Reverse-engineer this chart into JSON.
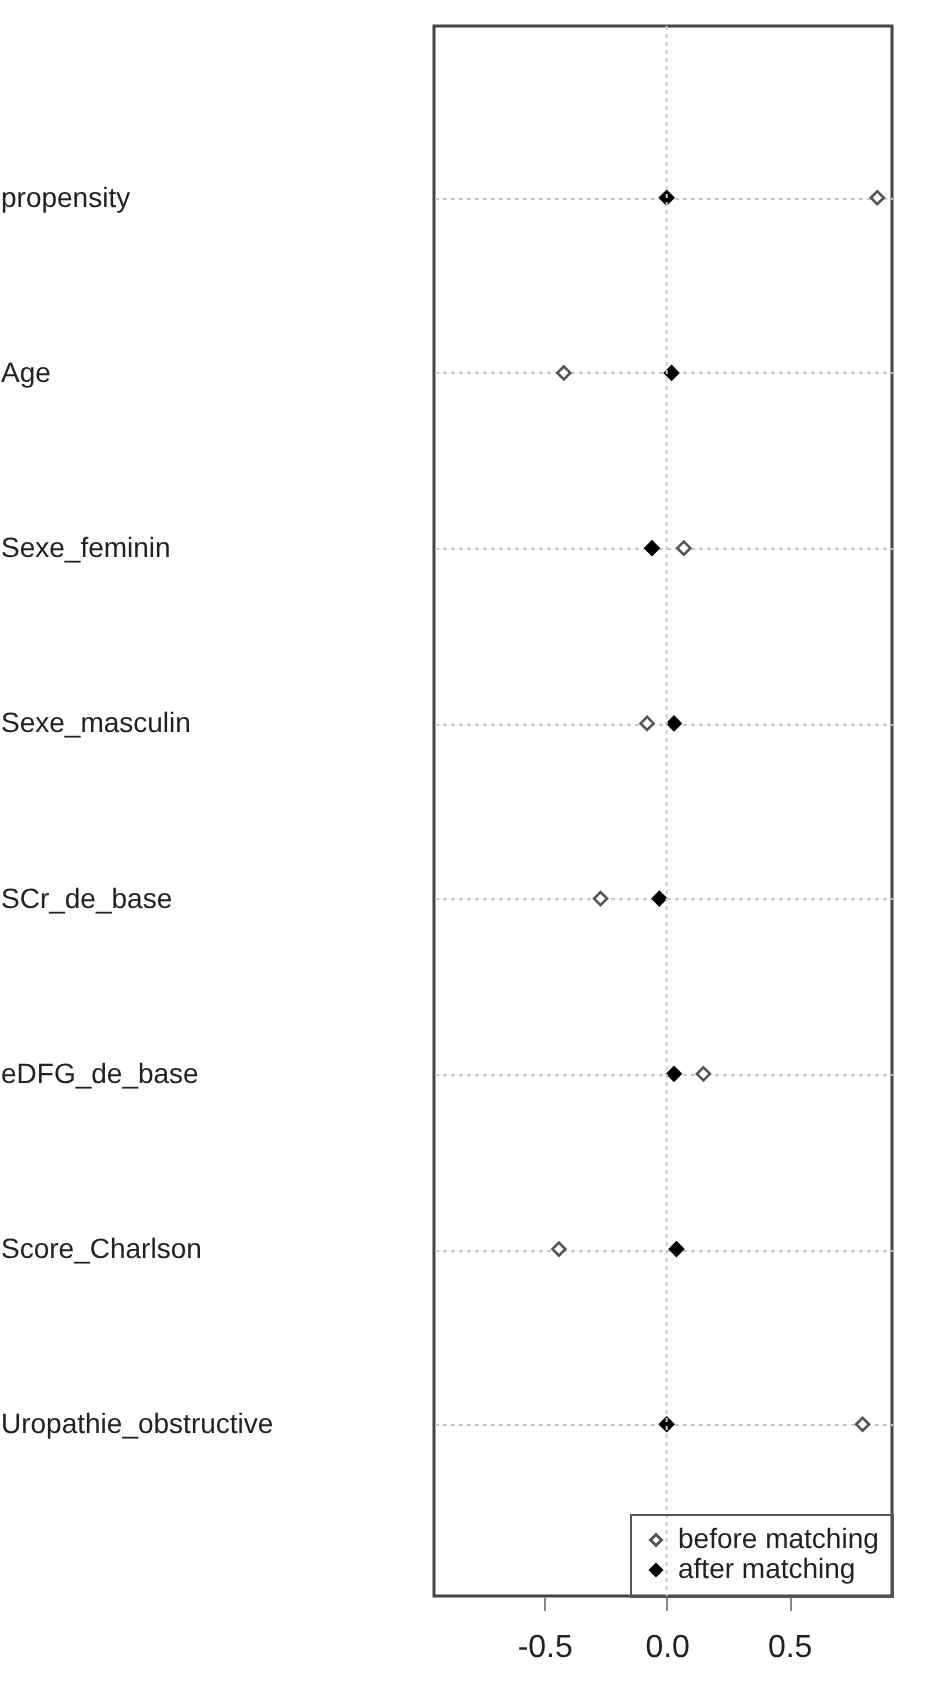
{
  "chart_data": {
    "type": "scatter",
    "categories": [
      "propensity",
      "Age",
      "Sexe_feminin",
      "Sexe_masculin",
      "SCr_de_base",
      "eDFG_de_base",
      "Score_Charlson",
      "Uropathie_obstructive"
    ],
    "series": [
      {
        "name": "before matching",
        "color": "#555555",
        "values": [
          0.86,
          -0.42,
          0.07,
          -0.08,
          -0.27,
          0.15,
          -0.44,
          0.8
        ]
      },
      {
        "name": "after matching",
        "color": "#000000",
        "values": [
          0.0,
          0.02,
          -0.06,
          0.03,
          -0.03,
          0.03,
          0.04,
          0.0
        ]
      }
    ],
    "xlim": [
      -0.95,
      0.92
    ],
    "xticks": [
      {
        "value": -0.5,
        "label": "-0.5"
      },
      {
        "value": 0,
        "label": "0.0"
      },
      {
        "value": 0.5,
        "label": "0.5"
      }
    ],
    "ref_lines": [
      {
        "axis": "x",
        "value": 0,
        "color": "#cccccc",
        "line_style": "dotted"
      }
    ],
    "grid": "y",
    "legend": "bottom right",
    "marker": "diamond",
    "orientation": "horizontal"
  }
}
